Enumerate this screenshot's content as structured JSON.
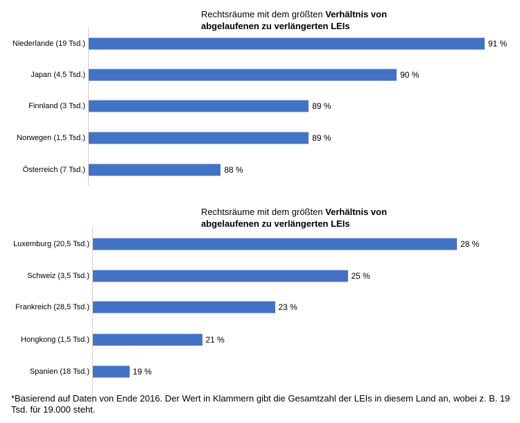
{
  "chart_data": [
    {
      "type": "bar",
      "orientation": "horizontal",
      "title_regular": "Rechtsräume mit dem größten ",
      "title_bold": "Verhältnis von abgelaufenen zu verlängerten LEIs",
      "categories": [
        "Niederlande (19 Tsd.)",
        "Japan (4,5 Tsd.)",
        "Finnland (3 Tsd.)",
        "Norwegen (1,5 Tsd.)",
        "Österreich (7 Tsd.)"
      ],
      "values": [
        91,
        90,
        89,
        89,
        88
      ],
      "value_labels": [
        "91 %",
        "90 %",
        "89 %",
        "89 %",
        "88 %"
      ],
      "xlim": [
        86.5,
        91
      ],
      "color": "#4472c4"
    },
    {
      "type": "bar",
      "orientation": "horizontal",
      "title_regular": "Rechtsräume mit dem größten ",
      "title_bold": "Verhältnis von abgelaufenen zu verlängerten LEIs",
      "categories": [
        "Luxemburg (20,5 Tsd.)",
        "Schweiz (3,5 Tsd.)",
        "Frankreich (28,5 Tsd.)",
        "Hongkong (1,5 Tsd.)",
        "Spanien (18 Tsd.)"
      ],
      "values": [
        28,
        25,
        23,
        21,
        19
      ],
      "value_labels": [
        "28 %",
        "25 %",
        "23 %",
        "21 %",
        "19 %"
      ],
      "xlim": [
        18,
        28
      ],
      "color": "#4472c4"
    }
  ],
  "footnote": "*Basierend auf Daten von Ende 2016. Der Wert in Klammern gibt die Gesamtzahl der LEIs in diesem Land an, wobei z. B. 19 Tsd. für 19.000 steht."
}
